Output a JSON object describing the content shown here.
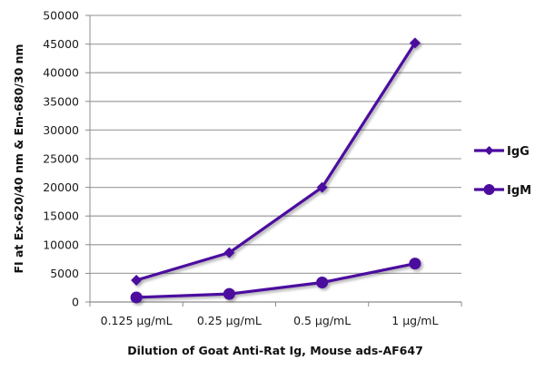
{
  "chart_data": {
    "type": "line",
    "title": "",
    "xlabel": "Dilution of Goat Anti-Rat Ig, Mouse ads-AF647",
    "ylabel": "FI at Ex-620/40 nm & Em-680/30 nm",
    "categories": [
      "0.125 µg/mL",
      "0.25 µg/mL",
      "0.5 µg/mL",
      "1 µg/mL"
    ],
    "series": [
      {
        "name": "IgG",
        "marker": "diamond",
        "color": "#4B0C9E",
        "values": [
          3800,
          8600,
          20000,
          45200
        ]
      },
      {
        "name": "IgM",
        "marker": "circle",
        "color": "#4B0C9E",
        "values": [
          800,
          1400,
          3400,
          6700
        ]
      }
    ],
    "ylim": [
      0,
      50000
    ],
    "yticks": [
      0,
      5000,
      10000,
      15000,
      20000,
      25000,
      30000,
      35000,
      40000,
      45000,
      50000
    ],
    "ytick_labels": [
      "0",
      "5000",
      "10000",
      "15000",
      "20000",
      "25000",
      "30000",
      "35000",
      "40000",
      "45000",
      "50000"
    ],
    "grid": true,
    "legend_position": "right"
  },
  "colors": {
    "series": "#4B0C9E",
    "grid": "#a6a6a6",
    "axis": "#8c8c8c"
  }
}
